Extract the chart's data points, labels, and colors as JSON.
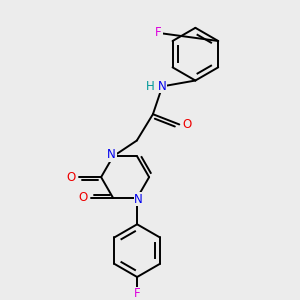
{
  "background_color": "#ececec",
  "atom_colors": {
    "C": "#000000",
    "N": "#0000ee",
    "O": "#ee0000",
    "F": "#dd00dd",
    "H": "#009999"
  },
  "bond_color": "#000000",
  "bond_width": 1.4,
  "figsize": [
    3.0,
    3.0
  ],
  "dpi": 100,
  "xlim": [
    0,
    10
  ],
  "ylim": [
    0,
    10
  ]
}
